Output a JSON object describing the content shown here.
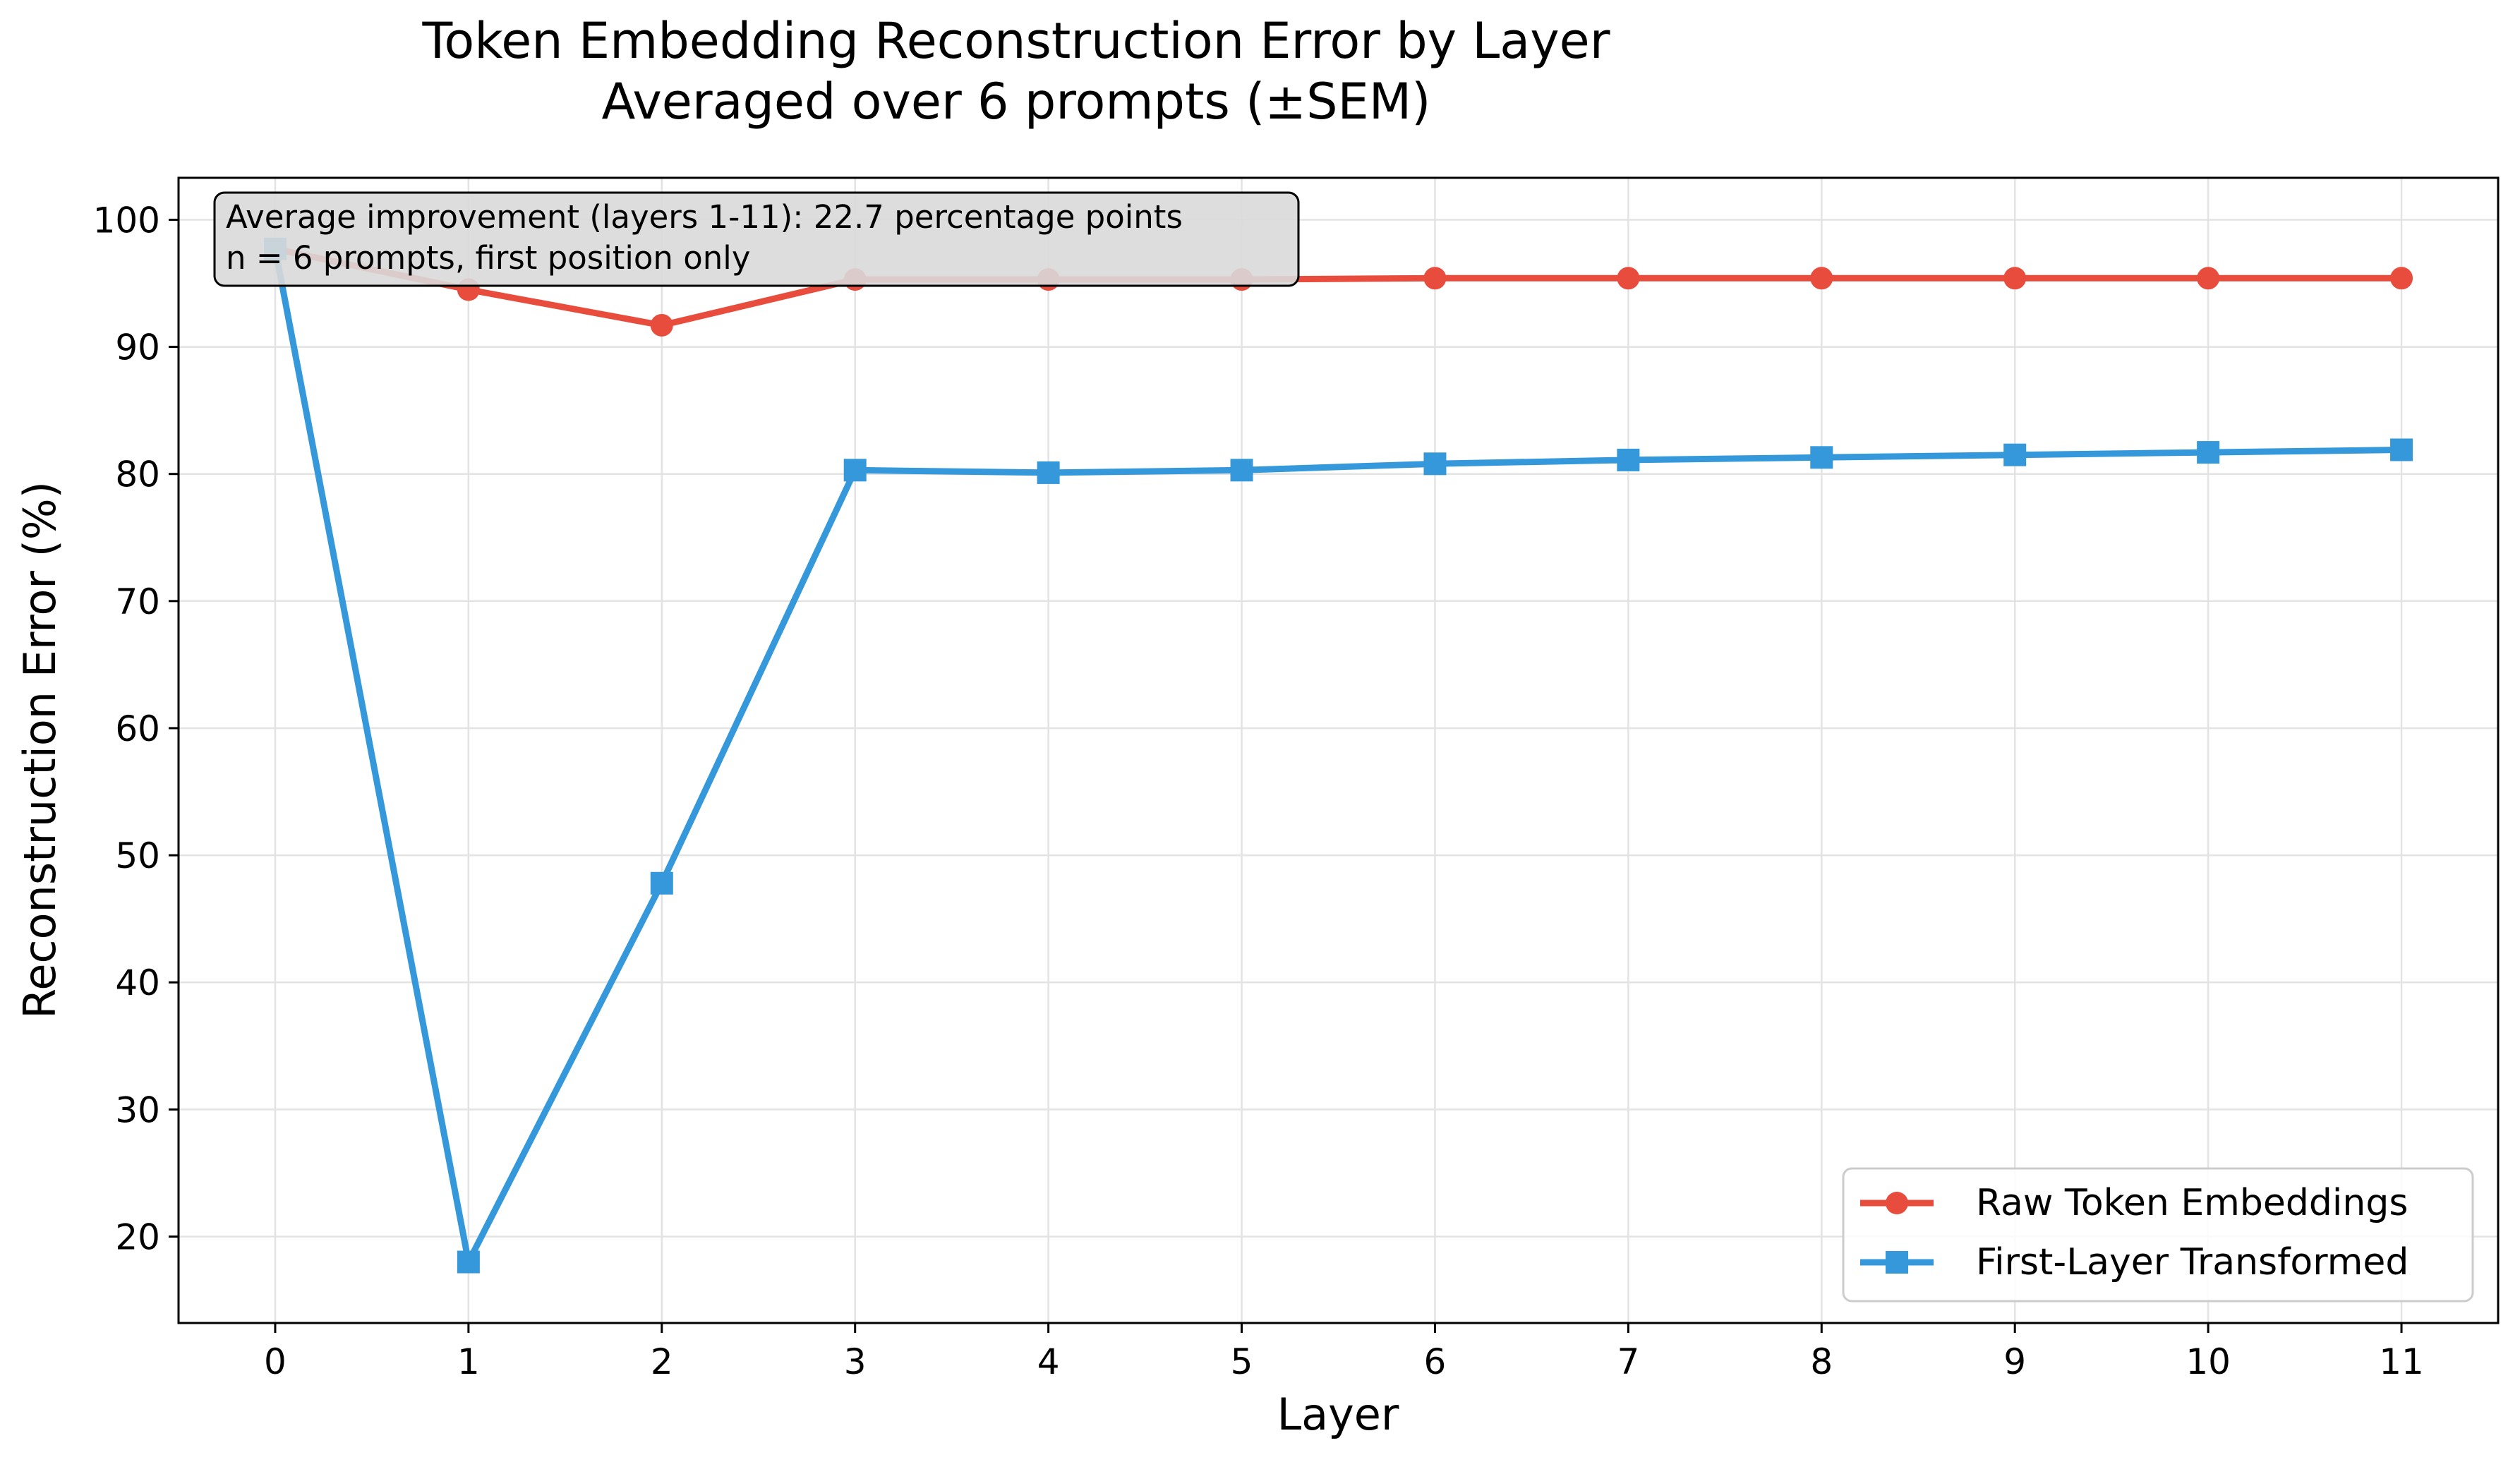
{
  "chart_data": {
    "type": "line",
    "title": "Token Embedding Reconstruction Error by Layer",
    "subtitle": "Averaged over 6 prompts (±SEM)",
    "xlabel": "Layer",
    "ylabel": "Reconstruction Error (%)",
    "x": [
      0,
      1,
      2,
      3,
      4,
      5,
      6,
      7,
      8,
      9,
      10,
      11
    ],
    "x_ticks": [
      "0",
      "1",
      "2",
      "3",
      "4",
      "5",
      "6",
      "7",
      "8",
      "9",
      "10",
      "11"
    ],
    "xlim": [
      -0.5,
      11.5
    ],
    "ylim": [
      13.2,
      103.3
    ],
    "y_ticks": [
      "20",
      "30",
      "40",
      "50",
      "60",
      "70",
      "80",
      "90",
      "100"
    ],
    "grid": true,
    "legend_position": "lower-right",
    "series": [
      {
        "name": "Raw Token Embeddings",
        "color": "#e74c3c",
        "marker": "circle",
        "values": [
          97.7,
          94.5,
          91.7,
          95.3,
          95.3,
          95.3,
          95.4,
          95.4,
          95.4,
          95.4,
          95.4,
          95.4
        ]
      },
      {
        "name": "First-Layer Transformed",
        "color": "#3498db",
        "marker": "square",
        "values": [
          97.7,
          18.0,
          47.8,
          80.3,
          80.1,
          80.3,
          80.8,
          81.1,
          81.3,
          81.5,
          81.7,
          81.9
        ]
      }
    ],
    "annotation": {
      "line1": "Average improvement (layers 1-11): 22.7 percentage points",
      "line2": "n = 6 prompts, first position only"
    }
  }
}
